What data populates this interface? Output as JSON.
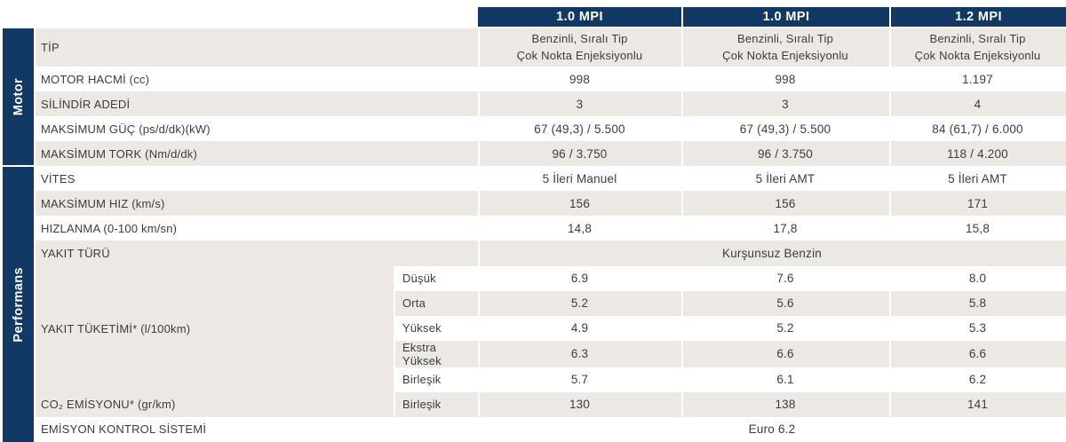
{
  "theme": {
    "navy": "#123864",
    "stripe_gray": "#ece9e5",
    "text_color": "#3c3c3c"
  },
  "sections": {
    "motor": "Motor",
    "performans": "Performans"
  },
  "columns": [
    "1.0 MPI",
    "1.0 MPI",
    "1.2 MPI"
  ],
  "table": {
    "rows": [
      {
        "label": "TİP",
        "values": [
          "Benzinli, Sıralı Tip\nÇok Nokta Enjeksiyonlu",
          "Benzinli, Sıralı Tip\nÇok Nokta Enjeksiyonlu",
          "Benzinli, Sıralı Tip\nÇok Nokta Enjeksiyonlu"
        ]
      },
      {
        "label": "MOTOR HACMİ (cc)",
        "values": [
          "998",
          "998",
          "1.197"
        ]
      },
      {
        "label": "SİLİNDİR ADEDİ",
        "values": [
          "3",
          "3",
          "4"
        ]
      },
      {
        "label": "MAKSİMUM GÜÇ (ps/d/dk)(kW)",
        "values": [
          "67 (49,3) / 5.500",
          "67 (49,3) / 5.500",
          "84 (61,7) / 6.000"
        ]
      },
      {
        "label": "MAKSİMUM TORK (Nm/d/dk)",
        "values": [
          "96 / 3.750",
          "96 / 3.750",
          "118 / 4.200"
        ]
      },
      {
        "label": "VİTES",
        "values": [
          "5 İleri Manuel",
          "5 İleri AMT",
          "5 İleri AMT"
        ]
      },
      {
        "label": "MAKSİMUM HIZ (km/s)",
        "values": [
          "156",
          "156",
          "171"
        ]
      },
      {
        "label": "HIZLANMA (0-100 km/sn)",
        "values": [
          "14,8",
          "17,8",
          "15,8"
        ]
      },
      {
        "label": "YAKIT TÜRÜ",
        "span_value": "Kurşunsuz Benzin"
      },
      {
        "label": "YAKIT TÜKETİMİ* (l/100km)",
        "subrows": [
          {
            "sub": "Düşük",
            "values": [
              "6.9",
              "7.6",
              "8.0"
            ]
          },
          {
            "sub": "Orta",
            "values": [
              "5.2",
              "5.6",
              "5.8"
            ]
          },
          {
            "sub": "Yüksek",
            "values": [
              "4.9",
              "5.2",
              "5.3"
            ]
          },
          {
            "sub": "Ekstra Yüksek",
            "values": [
              "6.3",
              "6.6",
              "6.6"
            ]
          },
          {
            "sub": "Birleşik",
            "values": [
              "5.7",
              "6.1",
              "6.2"
            ]
          }
        ]
      },
      {
        "label": "CO₂ EMİSYONU* (gr/km)",
        "sub": "Birleşik",
        "values": [
          "130",
          "138",
          "141"
        ]
      },
      {
        "label": "EMİSYON KONTROL SİSTEMİ",
        "span_value": "Euro 6.2"
      }
    ]
  }
}
